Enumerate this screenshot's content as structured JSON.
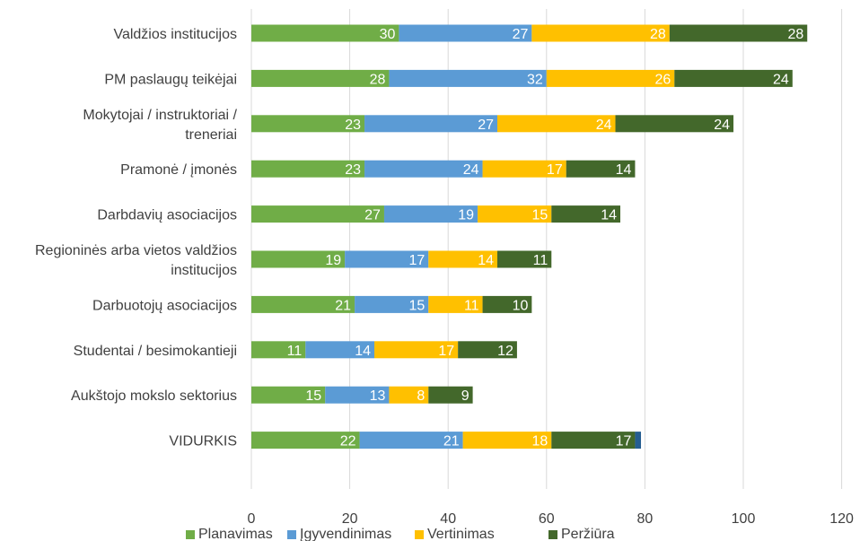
{
  "chart_data": {
    "type": "bar",
    "orientation": "horizontal",
    "stacked": true,
    "categories": [
      [
        "Valdžios institucijos"
      ],
      [
        "PM paslaugų teikėjai"
      ],
      [
        "Mokytojai / instruktoriai /",
        "treneriai"
      ],
      [
        "Pramonė / įmonės"
      ],
      [
        "Darbdavių asociacijos"
      ],
      [
        "Regioninės arba vietos valdžios",
        "institucijos"
      ],
      [
        "Darbuotojų asociacijos"
      ],
      [
        "Studentai / besimokantieji"
      ],
      [
        "Aukštojo mokslo sektorius"
      ],
      [
        "VIDURKIS"
      ]
    ],
    "series": [
      {
        "name": "Planavimas",
        "color": "#70ad47",
        "values": [
          30,
          28,
          23,
          23,
          27,
          19,
          21,
          11,
          15,
          22
        ]
      },
      {
        "name": "Įgyvendinimas",
        "color": "#5b9bd5",
        "values": [
          27,
          32,
          27,
          24,
          19,
          17,
          15,
          14,
          13,
          21
        ]
      },
      {
        "name": "Vertinimas",
        "color": "#ffc000",
        "values": [
          28,
          26,
          24,
          17,
          15,
          14,
          11,
          17,
          8,
          18
        ]
      },
      {
        "name": "Peržiūra",
        "color": "#43682b",
        "values": [
          28,
          24,
          24,
          14,
          14,
          11,
          10,
          12,
          9,
          17
        ]
      }
    ],
    "extra_segment": {
      "color": "#255e91",
      "values": [
        0,
        0,
        0,
        0,
        0,
        0,
        0,
        0,
        0,
        1.2
      ]
    },
    "xlim": [
      0,
      120
    ],
    "xticks": [
      0,
      20,
      40,
      60,
      80,
      100,
      120
    ],
    "grid": true,
    "legend_position": "bottom"
  }
}
